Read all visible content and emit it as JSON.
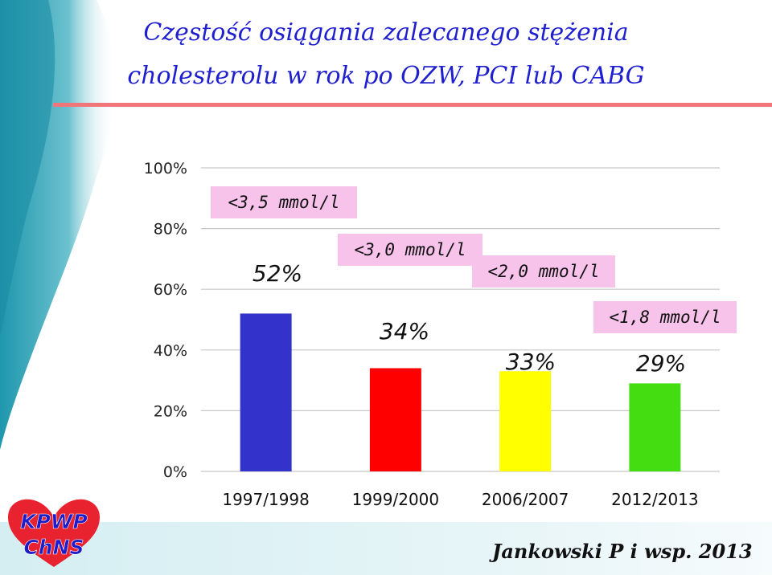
{
  "title": {
    "line1": "Częstość osiągania zalecanego stężenia",
    "line2": "cholesterolu w rok po OZW, PCI lub CABG"
  },
  "logo": {
    "line1": "KPWP",
    "line2": "ChNS"
  },
  "credit": "Jankowski P i wsp. 2013",
  "colors": {
    "title": "#1f1fd0",
    "rule": "#f0767a",
    "label_box": "#f7c3ea",
    "logo_heart": "#e8232f",
    "logo_text": "#1c1cc8",
    "background_left": "#2aa3b5"
  },
  "chart_data": {
    "type": "bar",
    "categories": [
      "1997/1998",
      "1999/2000",
      "2006/2007",
      "2012/2013"
    ],
    "values": [
      52,
      34,
      33,
      29
    ],
    "data_labels": [
      "52%",
      "34%",
      "33%",
      "29%"
    ],
    "thresholds": [
      "<3,5 mmol/l",
      "<3,0 mmol/l",
      "<2,0 mmol/l",
      "<1,8 mmol/l"
    ],
    "bar_colors": [
      "#3333cc",
      "#ff0000",
      "#ffff00",
      "#44dd11"
    ],
    "yticks": [
      "0%",
      "20%",
      "40%",
      "60%",
      "80%",
      "100%"
    ],
    "ylim": [
      0,
      100
    ],
    "grid": true,
    "legend": "none"
  }
}
